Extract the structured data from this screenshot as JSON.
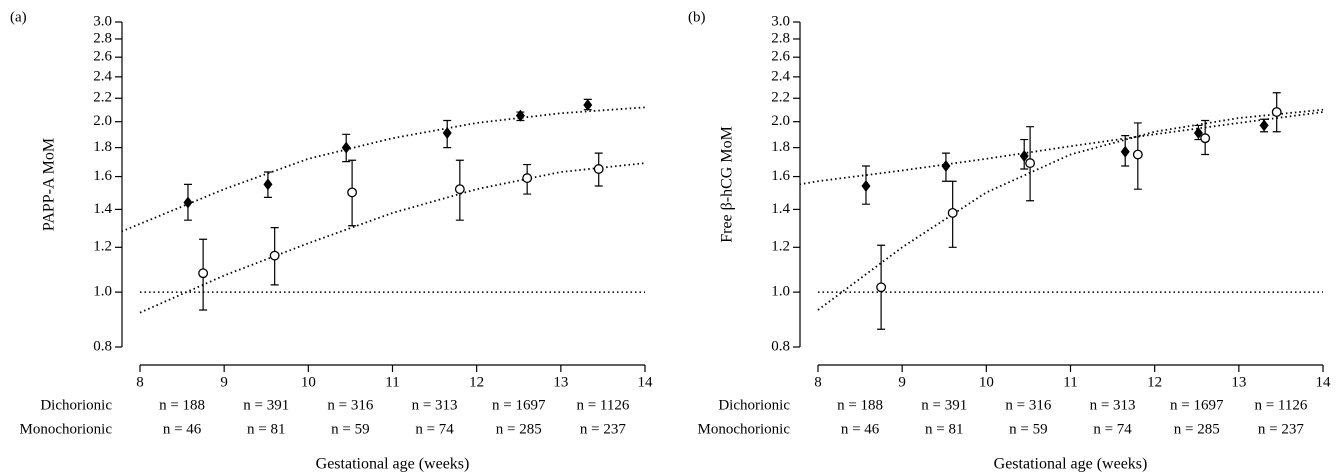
{
  "chart_data": [
    {
      "type": "scatter",
      "panel_label": "(a)",
      "y_label": "PAPP-A MoM",
      "x_label": "Gestational age (weeks)",
      "xlim": [
        8,
        14
      ],
      "xticks": [
        8,
        9,
        10,
        11,
        12,
        13,
        14
      ],
      "ylim": [
        0.8,
        3.0
      ],
      "log_y": true,
      "yticks": [
        0.8,
        {
          "value": 1,
          "label": "1.0"
        },
        1.2,
        1.4,
        1.6,
        1.8,
        {
          "value": 2,
          "label": "2.0"
        },
        2.2,
        2.4,
        2.6,
        2.8,
        {
          "value": 3,
          "label": "3.0"
        }
      ],
      "reference_line": 1,
      "series": [
        {
          "name": "Dichorionic",
          "marker": "diamond",
          "color": "#000000",
          "x": [
            8.57,
            9.52,
            10.45,
            11.65,
            12.52,
            13.32
          ],
          "values": [
            1.44,
            1.55,
            1.8,
            1.91,
            2.05,
            2.14
          ],
          "err_low": [
            1.34,
            1.47,
            1.7,
            1.8,
            2.01,
            2.1
          ],
          "err_high": [
            1.55,
            1.63,
            1.9,
            2.01,
            2.08,
            2.19
          ],
          "n_labels": [
            "n = 188",
            "n = 391",
            "n = 316",
            "n = 313",
            "n = 1697",
            "n = 1126"
          ]
        },
        {
          "name": "Monochorionic",
          "marker": "circle",
          "color": "#000000",
          "x": [
            8.75,
            9.6,
            10.52,
            11.8,
            12.6,
            13.45
          ],
          "values": [
            1.08,
            1.16,
            1.5,
            1.52,
            1.59,
            1.65
          ],
          "err_low": [
            0.93,
            1.03,
            1.31,
            1.34,
            1.49,
            1.54
          ],
          "err_high": [
            1.24,
            1.3,
            1.71,
            1.71,
            1.68,
            1.76
          ],
          "n_labels": [
            "n = 46",
            "n = 81",
            "n = 59",
            "n = 74",
            "n = 285",
            "n = 237"
          ]
        }
      ],
      "fits": [
        {
          "x": [
            7.78,
            8,
            9,
            10,
            11,
            12,
            13,
            14
          ],
          "values": [
            1.28,
            1.32,
            1.52,
            1.72,
            1.87,
            1.99,
            2.07,
            2.12
          ]
        },
        {
          "x": [
            8,
            9,
            10,
            11,
            12,
            13,
            14
          ],
          "values": [
            0.92,
            1.07,
            1.22,
            1.38,
            1.52,
            1.63,
            1.69
          ]
        }
      ]
    },
    {
      "type": "scatter",
      "panel_label": "(b)",
      "y_label": "Free β-hCG MoM",
      "x_label": "Gestational age (weeks)",
      "xlim": [
        8,
        14
      ],
      "xticks": [
        8,
        9,
        10,
        11,
        12,
        13,
        14
      ],
      "ylim": [
        0.8,
        3.0
      ],
      "log_y": true,
      "yticks": [
        0.8,
        {
          "value": 1,
          "label": "1.0"
        },
        1.2,
        1.4,
        1.6,
        1.8,
        {
          "value": 2,
          "label": "2.0"
        },
        2.2,
        2.4,
        2.6,
        2.8,
        {
          "value": 3,
          "label": "3.0"
        }
      ],
      "reference_line": 1,
      "series": [
        {
          "name": "Dichorionic",
          "marker": "diamond",
          "color": "#000000",
          "x": [
            8.57,
            9.52,
            10.45,
            11.65,
            12.52,
            13.3
          ],
          "values": [
            1.54,
            1.67,
            1.74,
            1.77,
            1.91,
            1.97
          ],
          "err_low": [
            1.43,
            1.57,
            1.65,
            1.67,
            1.86,
            1.92
          ],
          "err_high": [
            1.67,
            1.76,
            1.86,
            1.89,
            1.97,
            2.02
          ],
          "n_labels": [
            "n = 188",
            "n = 391",
            "n = 316",
            "n = 313",
            "n = 1697",
            "n = 1126"
          ]
        },
        {
          "name": "Monochorionic",
          "marker": "circle",
          "color": "#000000",
          "x": [
            8.75,
            9.6,
            10.52,
            11.8,
            12.6,
            13.45
          ],
          "values": [
            1.02,
            1.38,
            1.69,
            1.75,
            1.87,
            2.08
          ],
          "err_low": [
            0.86,
            1.2,
            1.45,
            1.52,
            1.75,
            1.92
          ],
          "err_high": [
            1.21,
            1.57,
            1.96,
            1.99,
            2.01,
            2.25
          ],
          "n_labels": [
            "n = 46",
            "n = 81",
            "n = 59",
            "n = 74",
            "n = 285",
            "n = 237"
          ]
        }
      ],
      "fits": [
        {
          "x": [
            7.78,
            8,
            9,
            10,
            11,
            12,
            13,
            14
          ],
          "values": [
            1.55,
            1.57,
            1.64,
            1.72,
            1.81,
            1.9,
            1.99,
            2.08
          ]
        },
        {
          "x": [
            8,
            9,
            10,
            11,
            12,
            13,
            14
          ],
          "values": [
            0.93,
            1.2,
            1.5,
            1.75,
            1.92,
            2.03,
            2.1
          ]
        }
      ]
    }
  ]
}
